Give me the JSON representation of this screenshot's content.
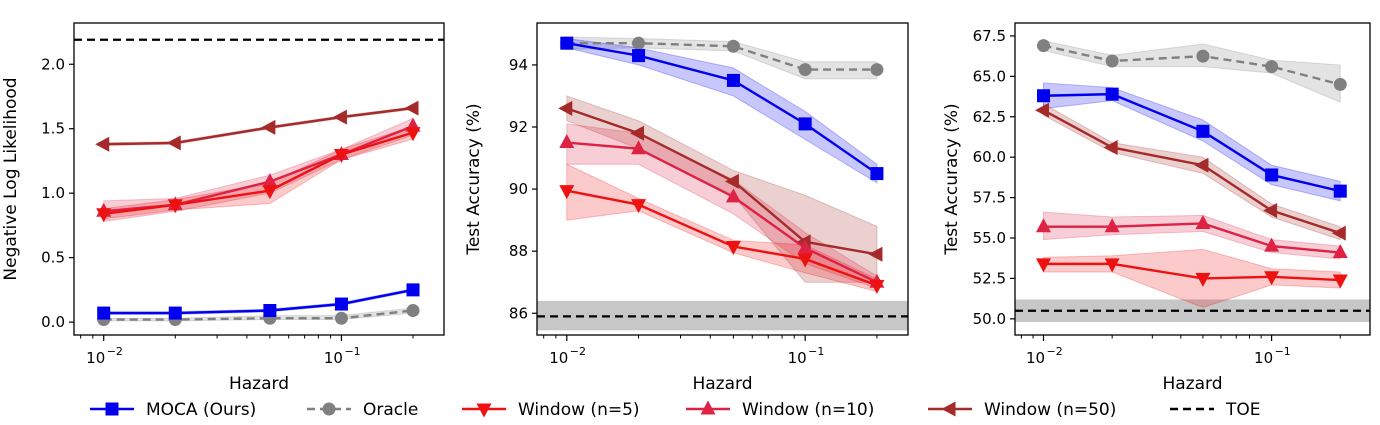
{
  "chart_data": [
    {
      "type": "line",
      "xscale": "log",
      "xlim": [
        0.0075,
        0.27
      ],
      "ylim": [
        -0.1,
        2.32
      ],
      "xlabel": "Hazard",
      "ylabel": "Negative Log Likelihood",
      "xticks": [
        {
          "value": 0.01,
          "base": "10",
          "exp": "−2"
        },
        {
          "value": 0.1,
          "base": "10",
          "exp": "−1"
        }
      ],
      "yticks": [
        "0.0",
        "0.5",
        "1.0",
        "1.5",
        "2.0"
      ],
      "x": [
        0.01,
        0.02,
        0.05,
        0.1,
        0.2
      ],
      "hline": {
        "name": "TOE",
        "y": 2.19,
        "band": null
      },
      "series": [
        {
          "name": "Oracle",
          "values": [
            0.02,
            0.02,
            0.03,
            0.03,
            0.09
          ],
          "lower": [
            0.01,
            0.01,
            0.02,
            0.02,
            0.07
          ],
          "upper": [
            0.03,
            0.03,
            0.05,
            0.05,
            0.11
          ]
        },
        {
          "name": "MOCA (Ours)",
          "values": [
            0.07,
            0.07,
            0.09,
            0.14,
            0.25
          ],
          "lower": [
            0.06,
            0.06,
            0.08,
            0.13,
            0.24
          ],
          "upper": [
            0.08,
            0.08,
            0.1,
            0.15,
            0.26
          ]
        },
        {
          "name": "Window (n=50)",
          "values": [
            1.38,
            1.39,
            1.51,
            1.59,
            1.66
          ],
          "lower": [
            1.37,
            1.38,
            1.5,
            1.58,
            1.65
          ],
          "upper": [
            1.39,
            1.4,
            1.52,
            1.6,
            1.67
          ]
        },
        {
          "name": "Window (n=10)",
          "values": [
            0.86,
            0.91,
            1.09,
            1.3,
            1.52
          ],
          "lower": [
            0.78,
            0.86,
            1.0,
            1.26,
            1.45
          ],
          "upper": [
            0.94,
            0.96,
            1.14,
            1.34,
            1.58
          ]
        },
        {
          "name": "Window (n=5)",
          "values": [
            0.84,
            0.91,
            1.02,
            1.3,
            1.47
          ],
          "lower": [
            0.8,
            0.87,
            0.92,
            1.26,
            1.42
          ],
          "upper": [
            0.88,
            0.95,
            1.08,
            1.34,
            1.52
          ]
        }
      ]
    },
    {
      "type": "line",
      "xscale": "log",
      "xlim": [
        0.0075,
        0.27
      ],
      "ylim": [
        85.3,
        95.35
      ],
      "xlabel": "Hazard",
      "ylabel": "Test Accuracy (%)",
      "xticks": [
        {
          "value": 0.01,
          "base": "10",
          "exp": "−2"
        },
        {
          "value": 0.1,
          "base": "10",
          "exp": "−1"
        }
      ],
      "yticks": [
        "86",
        "88",
        "90",
        "92",
        "94"
      ],
      "x": [
        0.01,
        0.02,
        0.05,
        0.1,
        0.2
      ],
      "hline": {
        "name": "TOE",
        "y": 85.9,
        "band": [
          85.45,
          86.4
        ]
      },
      "series": [
        {
          "name": "Oracle",
          "values": [
            94.7,
            94.7,
            94.6,
            93.85,
            93.85
          ],
          "lower": [
            94.5,
            94.55,
            94.45,
            93.55,
            93.55
          ],
          "upper": [
            94.9,
            94.85,
            94.75,
            94.1,
            94.1
          ]
        },
        {
          "name": "MOCA (Ours)",
          "values": [
            94.7,
            94.3,
            93.5,
            92.1,
            90.5
          ],
          "lower": [
            94.55,
            94.0,
            93.0,
            91.6,
            90.2
          ],
          "upper": [
            94.85,
            94.55,
            93.9,
            92.5,
            90.8
          ]
        },
        {
          "name": "Window (n=50)",
          "values": [
            92.6,
            91.8,
            90.25,
            88.3,
            87.9
          ],
          "lower": [
            92.2,
            91.3,
            89.8,
            87.0,
            87.0
          ],
          "upper": [
            93.0,
            92.2,
            90.6,
            89.8,
            88.8
          ]
        },
        {
          "name": "Window (n=10)",
          "values": [
            91.5,
            91.3,
            89.75,
            88.1,
            87.0
          ],
          "lower": [
            90.8,
            90.8,
            89.2,
            87.6,
            86.8
          ],
          "upper": [
            92.1,
            91.8,
            90.3,
            88.6,
            87.2
          ]
        },
        {
          "name": "Window (n=5)",
          "values": [
            89.95,
            89.5,
            88.15,
            87.75,
            86.9
          ],
          "lower": [
            89.0,
            89.3,
            87.95,
            87.3,
            86.7
          ],
          "upper": [
            90.8,
            89.7,
            88.35,
            88.2,
            87.1
          ]
        }
      ]
    },
    {
      "type": "line",
      "xscale": "log",
      "xlim": [
        0.0075,
        0.27
      ],
      "ylim": [
        49.0,
        68.3
      ],
      "xlabel": "Hazard",
      "ylabel": "Test Accuracy (%)",
      "xticks": [
        {
          "value": 0.01,
          "base": "10",
          "exp": "−2"
        },
        {
          "value": 0.1,
          "base": "10",
          "exp": "−1"
        }
      ],
      "yticks": [
        "50.0",
        "52.5",
        "55.0",
        "57.5",
        "60.0",
        "62.5",
        "65.0",
        "67.5"
      ],
      "x": [
        0.01,
        0.02,
        0.05,
        0.1,
        0.2
      ],
      "hline": {
        "name": "TOE",
        "y": 50.5,
        "band": [
          49.8,
          51.2
        ]
      },
      "series": [
        {
          "name": "Oracle",
          "values": [
            66.9,
            65.95,
            66.25,
            65.6,
            64.5
          ],
          "lower": [
            66.6,
            65.6,
            65.6,
            65.2,
            63.4
          ],
          "upper": [
            67.2,
            66.3,
            67.0,
            66.0,
            65.7
          ]
        },
        {
          "name": "MOCA (Ours)",
          "values": [
            63.8,
            63.9,
            61.6,
            58.9,
            57.9
          ],
          "lower": [
            63.0,
            63.5,
            61.0,
            58.3,
            57.3
          ],
          "upper": [
            64.6,
            64.3,
            62.3,
            59.5,
            58.5
          ]
        },
        {
          "name": "Window (n=50)",
          "values": [
            62.9,
            60.6,
            59.5,
            56.7,
            55.3
          ],
          "lower": [
            62.6,
            60.3,
            59.0,
            56.3,
            54.9
          ],
          "upper": [
            63.3,
            60.9,
            60.0,
            57.1,
            55.7
          ]
        },
        {
          "name": "Window (n=10)",
          "values": [
            55.7,
            55.7,
            55.9,
            54.5,
            54.1
          ],
          "lower": [
            54.9,
            55.2,
            55.4,
            54.1,
            53.7
          ],
          "upper": [
            56.6,
            56.3,
            56.4,
            54.9,
            54.5
          ]
        },
        {
          "name": "Window (n=5)",
          "values": [
            53.4,
            53.4,
            52.5,
            52.6,
            52.4
          ],
          "lower": [
            52.9,
            52.9,
            50.7,
            52.1,
            51.9
          ],
          "upper": [
            53.8,
            53.9,
            54.3,
            53.1,
            52.9
          ]
        }
      ]
    }
  ],
  "legend": [
    {
      "name": "MOCA (Ours)",
      "label": "MOCA (Ours)",
      "color": "#0000ee",
      "marker": "square",
      "dash": false
    },
    {
      "name": "Oracle",
      "label": "Oracle",
      "color": "#808080",
      "marker": "circle",
      "dash": true
    },
    {
      "name": "Window (n=5)",
      "label": "Window (n=5)",
      "color": "#ee1111",
      "marker": "tri-down",
      "dash": false
    },
    {
      "name": "Window (n=10)",
      "label": "Window (n=10)",
      "color": "#dd2244",
      "marker": "tri-up",
      "dash": false
    },
    {
      "name": "Window (n=50)",
      "label": "Window (n=50)",
      "color": "#a52a2a",
      "marker": "tri-left",
      "dash": false
    },
    {
      "name": "TOE",
      "label": "TOE",
      "color": "#000000",
      "marker": "none",
      "dash": true
    }
  ]
}
